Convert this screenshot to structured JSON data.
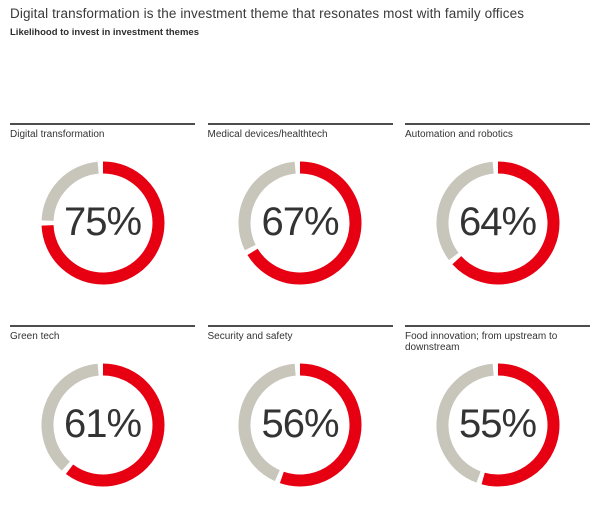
{
  "header": {
    "title": "Digital transformation is the investment theme that resonates most with family offices",
    "subtitle": "Likelihood to invest in investment themes"
  },
  "colors": {
    "value_arc_red": "#e60012",
    "remainder_arc_gray": "#c8c5bb",
    "divider_gray": "#4d4d4d",
    "text_dark": "#333333"
  },
  "chart_data": {
    "type": "pie",
    "variant": "donut-multiples",
    "title": "Digital transformation is the investment theme that resonates most with family offices",
    "subtitle": "Likelihood to invest in investment themes",
    "unit": "%",
    "categories": [
      "Digital transformation",
      "Medical devices/healthtech",
      "Automation and robotics",
      "Green tech",
      "Security and safety",
      "Food innovation; from upstream to downstream"
    ],
    "values": [
      75,
      67,
      64,
      61,
      56,
      55
    ],
    "value_labels": [
      "75%",
      "67%",
      "64%",
      "61%",
      "56%",
      "55%"
    ],
    "layout": {
      "rows": 2,
      "columns": 3,
      "start_angle": "top",
      "direction": "clockwise",
      "segment_gap_degrees": 5,
      "legend": "none",
      "grid": "off"
    }
  }
}
